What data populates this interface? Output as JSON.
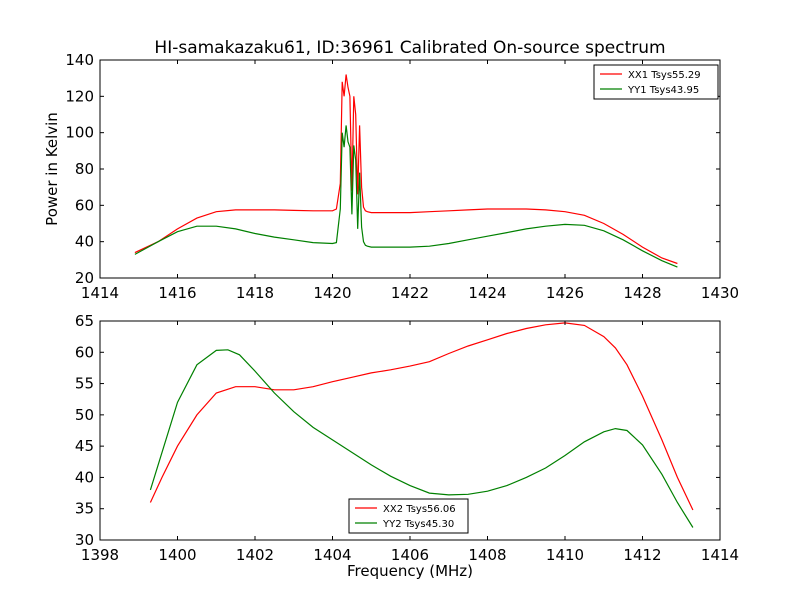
{
  "title": "HI-samakazaku61, ID:36961 Calibrated On-source spectrum",
  "chart_data": [
    {
      "type": "line",
      "ylabel": "Power in Kelvin",
      "xlabel": "",
      "xlim": [
        1414,
        1430
      ],
      "ylim": [
        20,
        140
      ],
      "xticks": [
        "1414",
        "1416",
        "1418",
        "1420",
        "1422",
        "1424",
        "1426",
        "1428",
        "1430"
      ],
      "yticks": [
        "20",
        "40",
        "60",
        "80",
        "100",
        "120",
        "140"
      ],
      "legend_position": "top-right",
      "series": [
        {
          "name": "XX1 Tsys55.29",
          "color": "#ff0000",
          "x": [
            1414.9,
            1415.5,
            1416.0,
            1416.5,
            1417.0,
            1417.5,
            1418.0,
            1418.5,
            1419.0,
            1419.5,
            1420.0,
            1420.1,
            1420.2,
            1420.25,
            1420.3,
            1420.35,
            1420.4,
            1420.45,
            1420.5,
            1420.55,
            1420.6,
            1420.65,
            1420.7,
            1420.75,
            1420.8,
            1420.85,
            1420.9,
            1421.0,
            1421.5,
            1422.0,
            1422.5,
            1423.0,
            1423.5,
            1424.0,
            1424.5,
            1425.0,
            1425.5,
            1426.0,
            1426.5,
            1427.0,
            1427.5,
            1428.0,
            1428.5,
            1428.9
          ],
          "y": [
            34,
            40,
            47,
            53,
            56.5,
            57.5,
            57.5,
            57.5,
            57.2,
            57,
            57,
            58,
            72,
            128,
            120,
            132,
            125,
            120,
            68,
            120,
            110,
            66,
            104,
            70,
            59,
            57,
            56.5,
            56,
            56,
            56,
            56.5,
            57,
            57.5,
            58,
            58,
            58,
            57.5,
            56.5,
            54.5,
            50,
            44,
            37,
            31,
            28
          ]
        },
        {
          "name": "YY1 Tsys43.95",
          "color": "#008000",
          "x": [
            1414.9,
            1415.5,
            1416.0,
            1416.5,
            1417.0,
            1417.5,
            1418.0,
            1418.5,
            1419.0,
            1419.5,
            1420.0,
            1420.1,
            1420.2,
            1420.25,
            1420.3,
            1420.35,
            1420.4,
            1420.45,
            1420.5,
            1420.55,
            1420.6,
            1420.65,
            1420.7,
            1420.75,
            1420.8,
            1420.85,
            1420.9,
            1421.0,
            1421.5,
            1422.0,
            1422.5,
            1423.0,
            1423.5,
            1424.0,
            1424.5,
            1425.0,
            1425.5,
            1426.0,
            1426.5,
            1427.0,
            1427.5,
            1428.0,
            1428.5,
            1428.9
          ],
          "y": [
            33,
            40,
            45.5,
            48.5,
            48.5,
            47,
            44.5,
            42.5,
            41,
            39.5,
            39,
            39.5,
            58,
            100,
            92,
            104,
            95,
            92,
            55,
            93,
            85,
            47,
            78,
            48,
            40,
            38,
            37.5,
            37,
            37,
            37,
            37.5,
            39,
            41,
            43,
            45,
            47,
            48.5,
            49.5,
            49,
            46,
            41,
            35,
            29.5,
            26
          ]
        }
      ]
    },
    {
      "type": "line",
      "ylabel": "",
      "xlabel": "Frequency (MHz)",
      "xlim": [
        1398,
        1414
      ],
      "ylim": [
        30,
        65
      ],
      "xticks": [
        "1398",
        "1400",
        "1402",
        "1404",
        "1406",
        "1408",
        "1410",
        "1412",
        "1414"
      ],
      "yticks": [
        "30",
        "35",
        "40",
        "45",
        "50",
        "55",
        "60",
        "65"
      ],
      "legend_position": "lower-center",
      "series": [
        {
          "name": "XX2 Tsys56.06",
          "color": "#ff0000",
          "x": [
            1399.3,
            1399.6,
            1400.0,
            1400.5,
            1401.0,
            1401.5,
            1402.0,
            1402.5,
            1403.0,
            1403.5,
            1404.0,
            1404.5,
            1405.0,
            1405.5,
            1406.0,
            1406.5,
            1407.0,
            1407.5,
            1408.0,
            1408.5,
            1409.0,
            1409.5,
            1410.0,
            1410.5,
            1411.0,
            1411.3,
            1411.6,
            1412.0,
            1412.5,
            1412.9,
            1413.3
          ],
          "y": [
            36,
            40,
            45,
            50,
            53.5,
            54.5,
            54.5,
            54,
            54,
            54.5,
            55.3,
            56,
            56.7,
            57.2,
            57.8,
            58.5,
            59.8,
            61,
            62,
            63,
            63.8,
            64.4,
            64.7,
            64.3,
            62.5,
            60.7,
            58,
            53,
            46,
            40,
            34.8
          ]
        },
        {
          "name": "YY2 Tsys45.30",
          "color": "#008000",
          "x": [
            1399.3,
            1399.6,
            1400.0,
            1400.5,
            1401.0,
            1401.3,
            1401.6,
            1402.0,
            1402.5,
            1403.0,
            1403.5,
            1404.0,
            1404.5,
            1405.0,
            1405.5,
            1406.0,
            1406.5,
            1407.0,
            1407.5,
            1408.0,
            1408.5,
            1409.0,
            1409.5,
            1410.0,
            1410.5,
            1411.0,
            1411.3,
            1411.6,
            1412.0,
            1412.5,
            1412.9,
            1413.3
          ],
          "y": [
            38,
            44,
            52,
            58,
            60.3,
            60.4,
            59.6,
            57,
            53.5,
            50.5,
            48,
            46,
            44,
            42,
            40.2,
            38.7,
            37.5,
            37.2,
            37.3,
            37.8,
            38.7,
            40,
            41.5,
            43.5,
            45.7,
            47.3,
            47.8,
            47.5,
            45.2,
            40.5,
            36,
            32
          ]
        }
      ]
    }
  ]
}
